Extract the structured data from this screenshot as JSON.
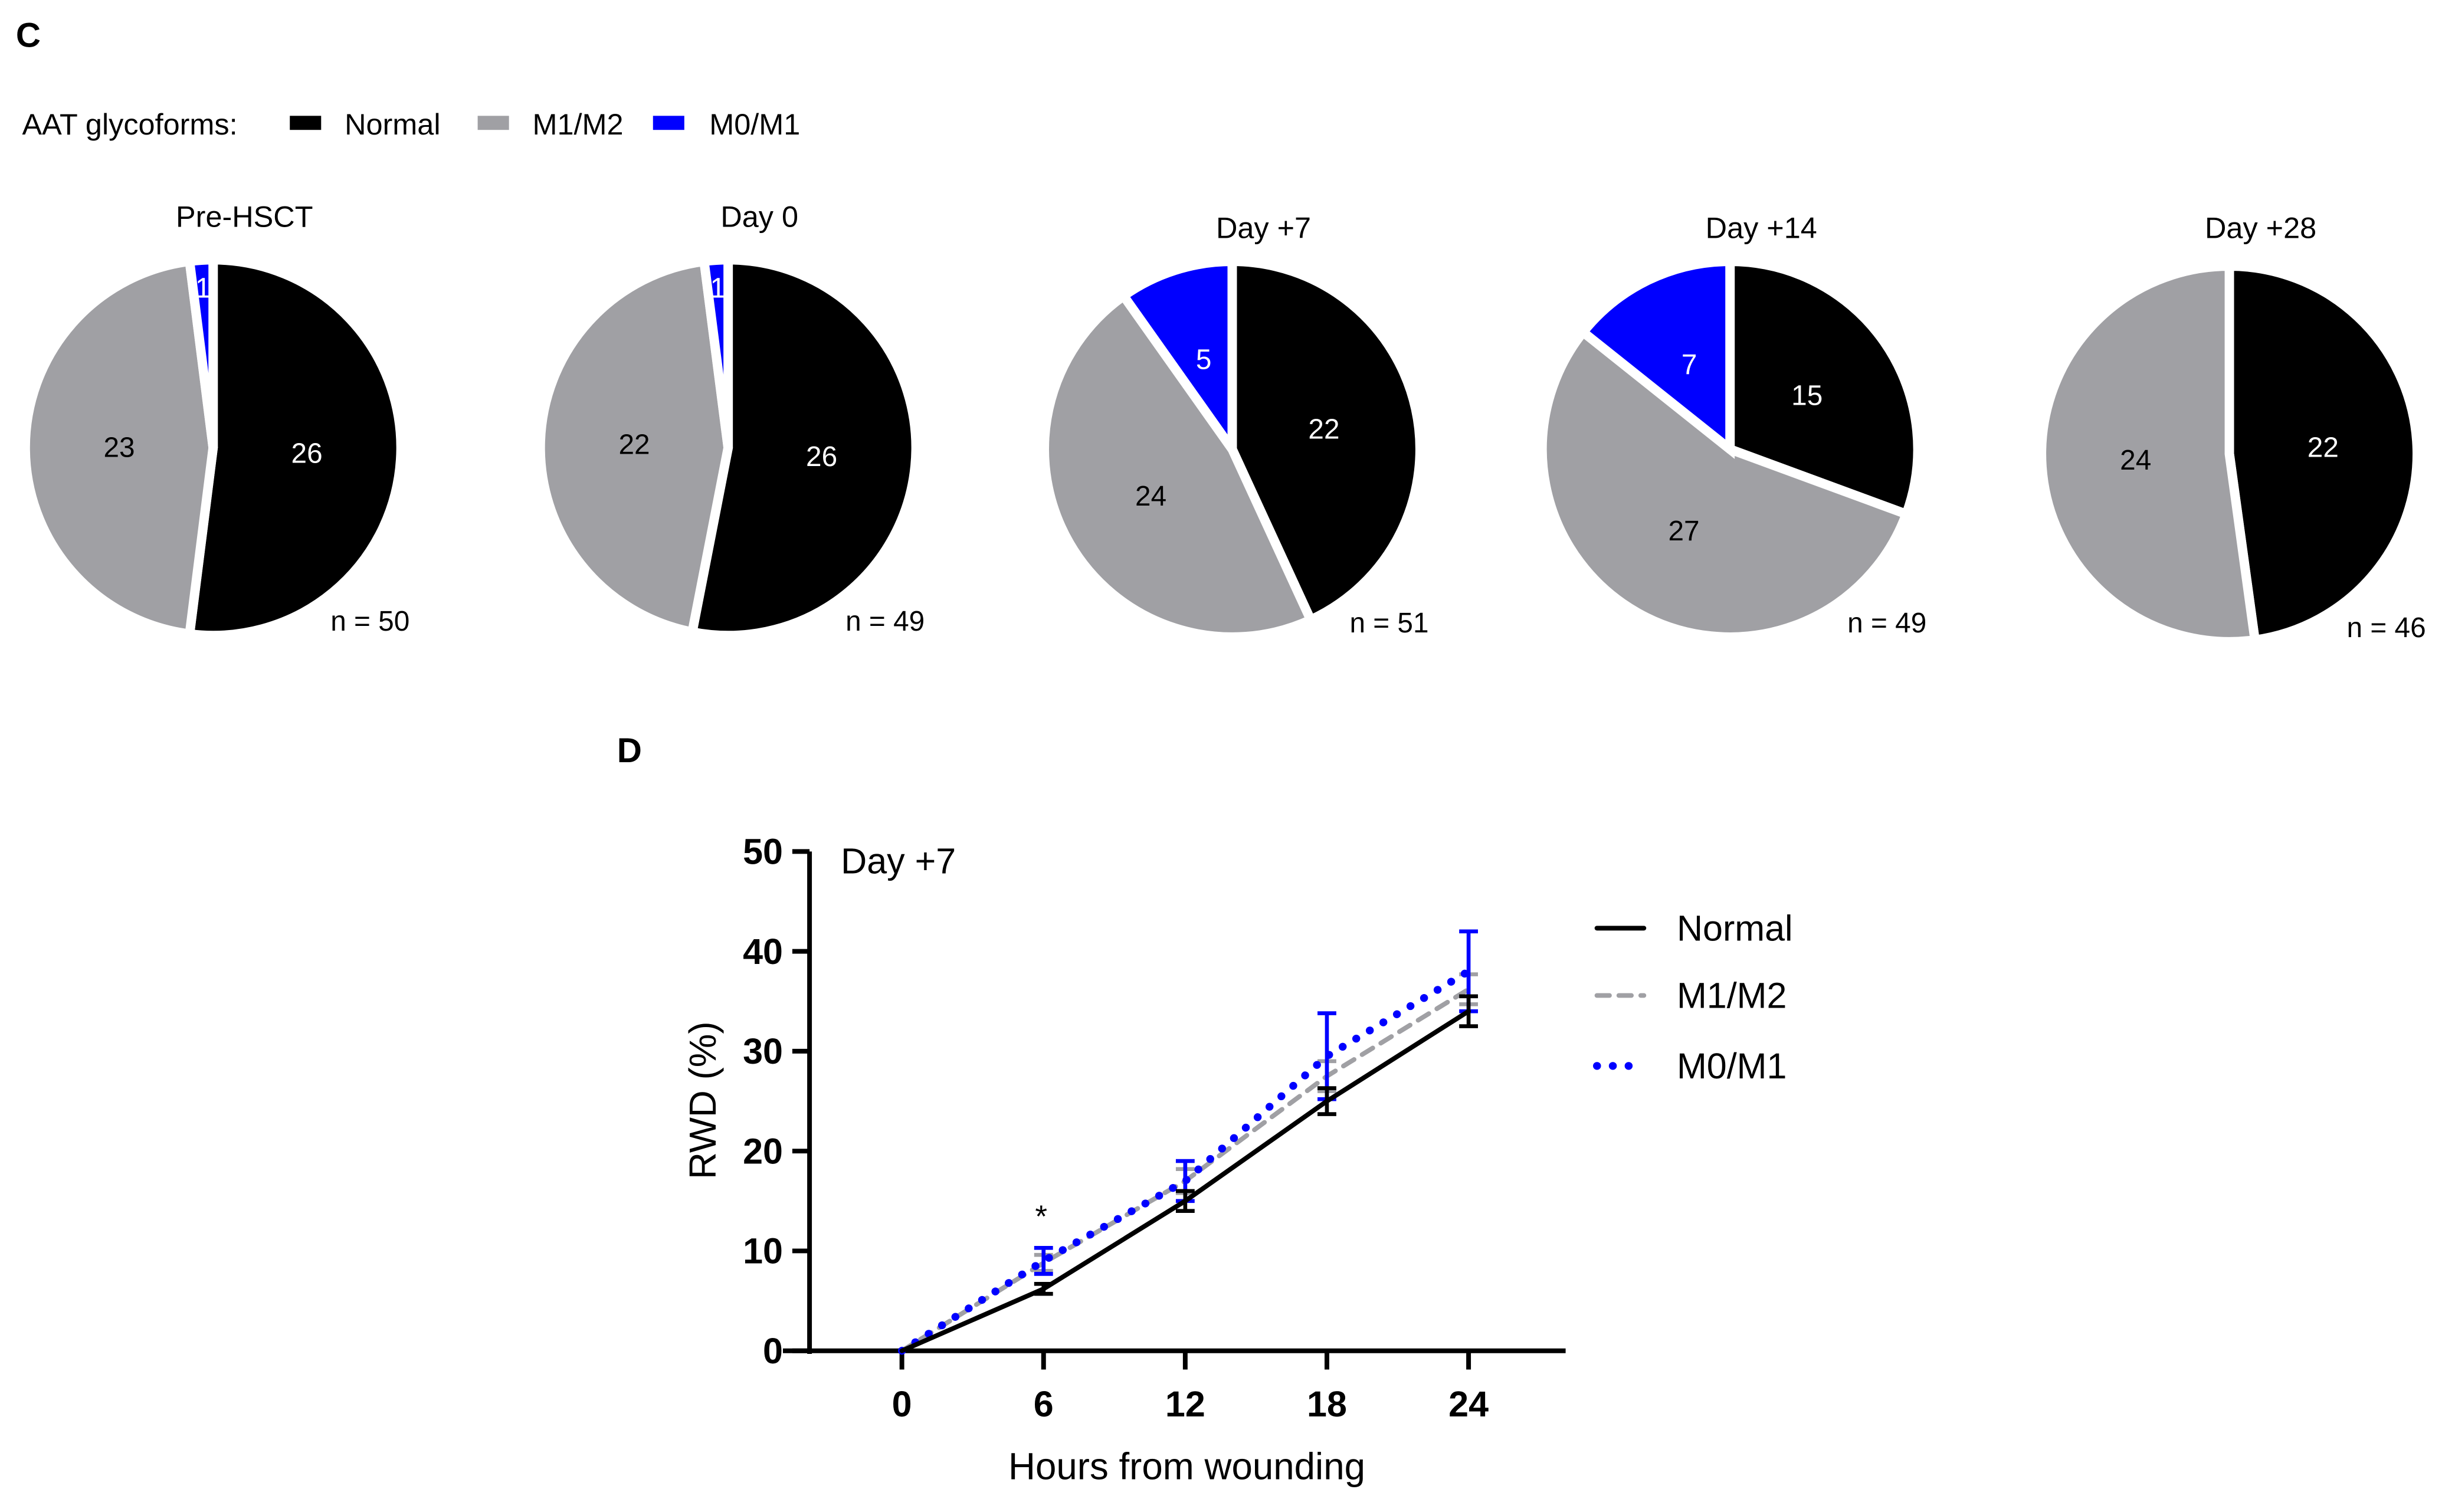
{
  "panel_c_label": "C",
  "panel_d_label": "D",
  "colors": {
    "Normal": "#000000",
    "M1/M2": "#a0a0a4",
    "M0/M1": "#0000ff"
  },
  "chart_data": [
    {
      "type": "pie",
      "legend_title": "AAT glycoforms:",
      "legend": [
        "Normal",
        "M1/M2",
        "M0/M1"
      ],
      "legend_placement": "top-left",
      "pies": [
        {
          "title": "Pre-HSCT",
          "n_label": "n = 50",
          "values": {
            "Normal": 26,
            "M1/M2": 23,
            "M0/M1": 1
          }
        },
        {
          "title": "Day 0",
          "n_label": "n = 49",
          "values": {
            "Normal": 26,
            "M1/M2": 22,
            "M0/M1": 1
          }
        },
        {
          "title": "Day +7",
          "n_label": "n = 51",
          "values": {
            "Normal": 22,
            "M1/M2": 24,
            "M0/M1": 5
          }
        },
        {
          "title": "Day +14",
          "n_label": "n = 49",
          "values": {
            "Normal": 15,
            "M1/M2": 27,
            "M0/M1": 7
          }
        },
        {
          "title": "Day +28",
          "n_label": "n = 46",
          "values": {
            "Normal": 22,
            "M1/M2": 24,
            "M0/M1": 0
          }
        }
      ]
    },
    {
      "type": "line",
      "title": "Day +7",
      "xlabel": "Hours from wounding",
      "ylabel": "RWD (%)",
      "x": [
        0,
        6,
        12,
        18,
        24
      ],
      "xticks": [
        "0",
        "6",
        "12",
        "18",
        "24"
      ],
      "yticks": [
        "0",
        "10",
        "20",
        "30",
        "40",
        "50"
      ],
      "xlim": [
        -4,
        28
      ],
      "ylim": [
        0,
        50
      ],
      "grid": false,
      "legend_placement": "right",
      "annotation": {
        "text": "*",
        "x": 6
      },
      "series": [
        {
          "name": "Normal",
          "style": "solid",
          "values": [
            0,
            6.2,
            15,
            25,
            34
          ],
          "errors": [
            0,
            0.5,
            1.0,
            1.3,
            1.5
          ]
        },
        {
          "name": "M1/M2",
          "style": "dashed",
          "values": [
            0,
            8.8,
            17,
            27.5,
            36.2
          ],
          "errors": [
            0,
            0.8,
            1.2,
            1.5,
            1.5
          ]
        },
        {
          "name": "M0/M1",
          "style": "dotted",
          "values": [
            0,
            9,
            17,
            29.5,
            38
          ],
          "errors": [
            0,
            1.3,
            2.0,
            4.3,
            4.0
          ]
        }
      ]
    }
  ]
}
